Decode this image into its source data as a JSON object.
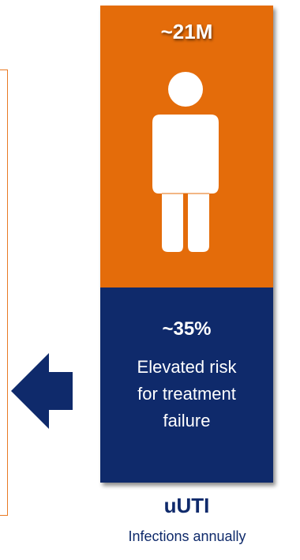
{
  "card": {
    "top_stat": "~21M",
    "bottom_stat": "~35%",
    "description_lines": [
      "Elevated risk",
      "for treatment",
      "failure"
    ],
    "title": "uUTI",
    "subtitle": "Infections annually"
  },
  "colors": {
    "orange": "#e46c0a",
    "navy": "#0f2a6b",
    "panel_border": "#e97a24"
  },
  "icons": {
    "person": "person-icon",
    "arrow": "left-arrow-icon"
  }
}
